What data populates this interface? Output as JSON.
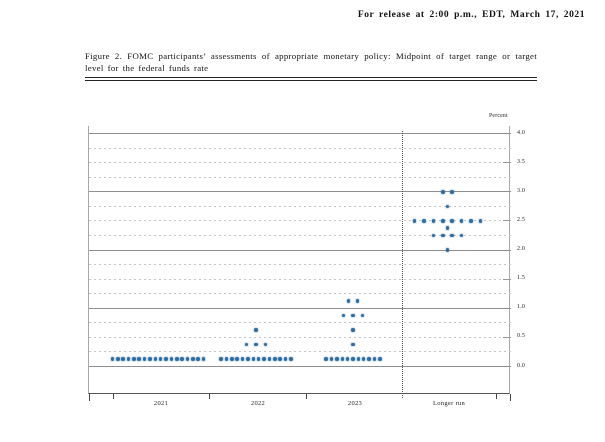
{
  "release_line": "For release at 2:00 p.m., EDT, March 17, 2021",
  "figure": {
    "caption": "Figure 2.  FOMC participants’ assessments of appropriate monetary policy:  Midpoint of target range or target level for the federal funds rate"
  },
  "chart_data": {
    "type": "scatter",
    "title": "FOMC participants’ assessments of appropriate monetary policy: Midpoint of target range or target level for the federal funds rate",
    "ylabel": "Percent",
    "ylim": [
      0.0,
      4.0
    ],
    "gridline_step": 0.25,
    "label_step": 0.5,
    "grid": true,
    "legend_position": "none",
    "y_tick_labels": [
      "0.0",
      "0.5",
      "1.0",
      "1.5",
      "2.0",
      "2.5",
      "3.0",
      "3.5",
      "4.0"
    ],
    "categories": [
      "2021",
      "2022",
      "2023",
      "Longer run"
    ],
    "dot_color": "#2e6da4",
    "series": [
      {
        "name": "2021",
        "dots": [
          {
            "rate_percent": 0.125,
            "participants": 18
          }
        ]
      },
      {
        "name": "2022",
        "dots": [
          {
            "rate_percent": 0.125,
            "participants": 14
          },
          {
            "rate_percent": 0.375,
            "participants": 3
          },
          {
            "rate_percent": 0.625,
            "participants": 1
          }
        ]
      },
      {
        "name": "2023",
        "dots": [
          {
            "rate_percent": 0.125,
            "participants": 11
          },
          {
            "rate_percent": 0.375,
            "participants": 1
          },
          {
            "rate_percent": 0.625,
            "participants": 1
          },
          {
            "rate_percent": 0.875,
            "participants": 3
          },
          {
            "rate_percent": 1.125,
            "participants": 2
          }
        ]
      },
      {
        "name": "Longer run",
        "dots": [
          {
            "rate_percent": 2.0,
            "participants": 1
          },
          {
            "rate_percent": 2.25,
            "participants": 4
          },
          {
            "rate_percent": 2.375,
            "participants": 1
          },
          {
            "rate_percent": 2.5,
            "participants": 8
          },
          {
            "rate_percent": 2.75,
            "participants": 1
          },
          {
            "rate_percent": 3.0,
            "participants": 2
          }
        ]
      }
    ]
  }
}
